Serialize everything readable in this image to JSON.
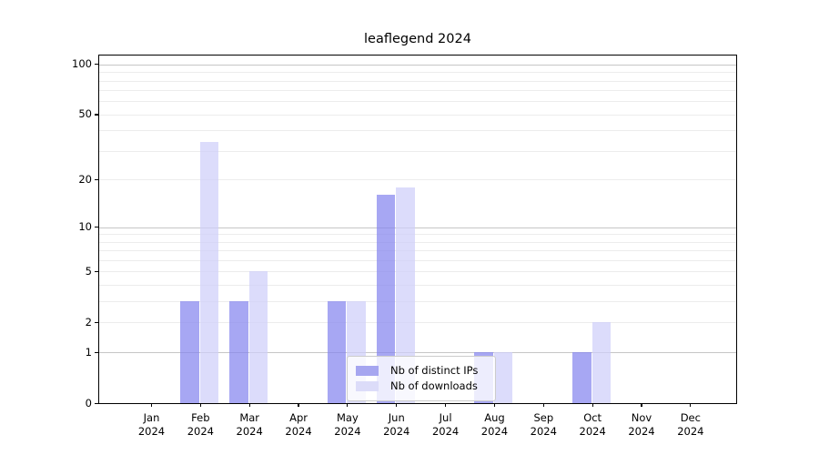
{
  "title": "leaflegend 2024",
  "legend": {
    "items": [
      {
        "label": "Nb of distinct IPs",
        "color": "#a6a6f0"
      },
      {
        "label": "Nb of downloads",
        "color": "#dcdcf9"
      }
    ]
  },
  "chart_data": {
    "type": "bar",
    "title": "leaflegend 2024",
    "categories": [
      "Jan",
      "Feb",
      "Mar",
      "Apr",
      "May",
      "Jun",
      "Jul",
      "Aug",
      "Sep",
      "Oct",
      "Nov",
      "Dec"
    ],
    "x_year": "2024",
    "series": [
      {
        "name": "Nb of distinct IPs",
        "fill": "rgba(133,133,238,0.72)",
        "legend_color": "#a6a6f0",
        "values": [
          0,
          3,
          3,
          0,
          3,
          16,
          0,
          1,
          0,
          1,
          0,
          0
        ]
      },
      {
        "name": "Nb of downloads",
        "fill": "rgba(206,206,250,0.72)",
        "legend_color": "#dcdcf9",
        "values": [
          0,
          34,
          5,
          0,
          3,
          18,
          0,
          1,
          0,
          2,
          0,
          0
        ]
      }
    ],
    "yscale": "log1p",
    "ylim": [
      0,
      113
    ],
    "yticks_labeled": [
      0,
      1,
      2,
      5,
      10,
      20,
      50,
      100
    ],
    "ygrid_major": [
      1,
      10,
      100
    ],
    "ygrid_minor": [
      2,
      3,
      4,
      5,
      6,
      7,
      8,
      9,
      20,
      30,
      40,
      50,
      60,
      70,
      80,
      90
    ],
    "grid_color_major": "#c6c6c6",
    "grid_color_minor": "#ececec",
    "legend_position": "inside-lower-center",
    "grid": true
  }
}
